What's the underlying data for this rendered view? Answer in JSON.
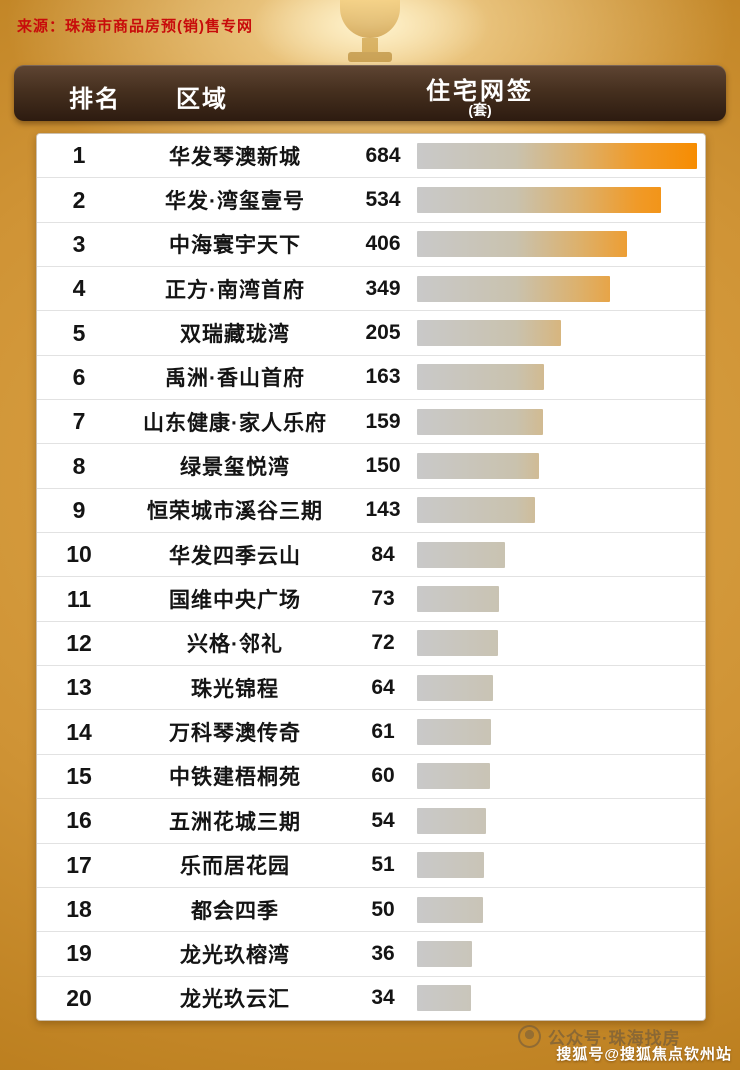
{
  "source": "来源：珠海市商品房预(销)售专网",
  "table": {
    "col_rank": "排名",
    "col_area": "区域",
    "col_value": "住宅网签",
    "col_unit": "(套)",
    "rows": [
      {
        "rank": "1",
        "name": "华发琴澳新城",
        "value": 684
      },
      {
        "rank": "2",
        "name": "华发·湾玺壹号",
        "value": 534
      },
      {
        "rank": "3",
        "name": "中海寰宇天下",
        "value": 406
      },
      {
        "rank": "4",
        "name": "正方·南湾首府",
        "value": 349
      },
      {
        "rank": "5",
        "name": "双瑞藏珑湾",
        "value": 205
      },
      {
        "rank": "6",
        "name": "禹洲·香山首府",
        "value": 163
      },
      {
        "rank": "7",
        "name": "山东健康·家人乐府",
        "value": 159
      },
      {
        "rank": "8",
        "name": "绿景玺悦湾",
        "value": 150
      },
      {
        "rank": "9",
        "name": "恒荣城市溪谷三期",
        "value": 143
      },
      {
        "rank": "10",
        "name": "华发四季云山",
        "value": 84
      },
      {
        "rank": "11",
        "name": "国维中央广场",
        "value": 73
      },
      {
        "rank": "12",
        "name": "兴格·邻礼",
        "value": 72
      },
      {
        "rank": "13",
        "name": "珠光锦程",
        "value": 64
      },
      {
        "rank": "14",
        "name": "万科琴澳传奇",
        "value": 61
      },
      {
        "rank": "15",
        "name": "中铁建梧桐苑",
        "value": 60
      },
      {
        "rank": "16",
        "name": "五洲花城三期",
        "value": 54
      },
      {
        "rank": "17",
        "name": "乐而居花园",
        "value": 51
      },
      {
        "rank": "18",
        "name": "都会四季",
        "value": 50
      },
      {
        "rank": "19",
        "name": "龙光玖榕湾",
        "value": 36
      },
      {
        "rank": "20",
        "name": "龙光玖云汇",
        "value": 34
      }
    ]
  },
  "watermark": "公众号·珠海找房",
  "footer": "搜狐号@搜狐焦点钦州站",
  "colors": {
    "accent_orange": "#f78c00",
    "bar_gray": "#c9c9c9",
    "header_brown": "#3a2315",
    "source_red": "#c80b0b",
    "background_gold": "#cf9335"
  },
  "chart_data": {
    "type": "bar",
    "title": "住宅网签(套)",
    "categories": [
      "华发琴澳新城",
      "华发·湾玺壹号",
      "中海寰宇天下",
      "正方·南湾首府",
      "双瑞藏珑湾",
      "禹洲·香山首府",
      "山东健康·家人乐府",
      "绿景玺悦湾",
      "恒荣城市溪谷三期",
      "华发四季云山",
      "国维中央广场",
      "兴格·邻礼",
      "珠光锦程",
      "万科琴澳传奇",
      "中铁建梧桐苑",
      "五洲花城三期",
      "乐而居花园",
      "都会四季",
      "龙光玖榕湾",
      "龙光玖云汇"
    ],
    "values": [
      684,
      534,
      406,
      349,
      205,
      163,
      159,
      150,
      143,
      84,
      73,
      72,
      64,
      61,
      60,
      54,
      51,
      50,
      36,
      34
    ],
    "xlabel": "住宅网签(套)",
    "ylabel": "区域",
    "xlim": [
      0,
      700
    ],
    "orientation": "horizontal",
    "legend": "none",
    "grid": false
  }
}
